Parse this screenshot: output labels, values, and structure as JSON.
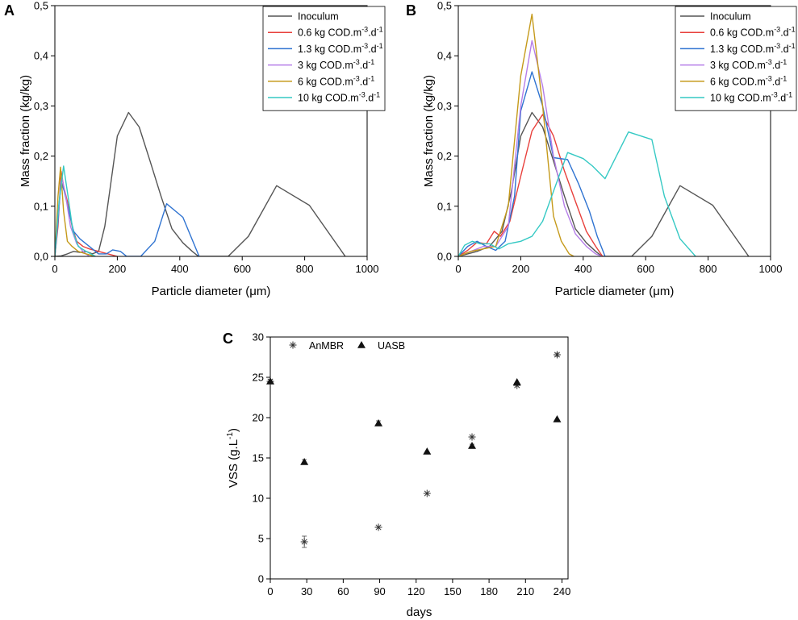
{
  "panel_labels": {
    "a": "A",
    "b": "B",
    "c": "C"
  },
  "chart_data": [
    {
      "panel": "A",
      "type": "line",
      "xlabel": "Particle diameter (μm)",
      "ylabel": "Mass fraction (kg/kg)",
      "xlim": [
        0,
        1000
      ],
      "ylim": [
        0,
        0.5
      ],
      "xticks": [
        0,
        200,
        400,
        600,
        800,
        1000
      ],
      "yticks": [
        0,
        0.1,
        0.2,
        0.3,
        0.4,
        0.5
      ],
      "xtick_labels": [
        "0",
        "200",
        "400",
        "600",
        "800",
        "1000"
      ],
      "ytick_labels": [
        "0,0",
        "0,1",
        "0,2",
        "0,3",
        "0,4",
        "0,5"
      ],
      "legend_position": "top-right",
      "series": [
        {
          "name": "Inoculum",
          "label": {
            "base": "Inoculum"
          },
          "color": "#555555",
          "points": [
            [
              0,
              0
            ],
            [
              20,
              0.001
            ],
            [
              40,
              0.005
            ],
            [
              60,
              0.01
            ],
            [
              80,
              0.008
            ],
            [
              100,
              0.01
            ],
            [
              120,
              0.005
            ],
            [
              140,
              0.01
            ],
            [
              160,
              0.06
            ],
            [
              180,
              0.15
            ],
            [
              200,
              0.24
            ],
            [
              236,
              0.287
            ],
            [
              270,
              0.258
            ],
            [
              305,
              0.19
            ],
            [
              340,
              0.12
            ],
            [
              375,
              0.055
            ],
            [
              410,
              0.027
            ],
            [
              440,
              0.01
            ],
            [
              460,
              0.0
            ],
            [
              555,
              0.0
            ],
            [
              620,
              0.04
            ],
            [
              710,
              0.141
            ],
            [
              815,
              0.102
            ],
            [
              930,
              0.0
            ]
          ]
        },
        {
          "name": "0.6 kg COD.m-3.d-1",
          "label": {
            "base": "0.6 kg COD.m",
            "sup": "-3",
            "mid": ".d",
            "sup2": "-1"
          },
          "color": "#e8403c",
          "points": [
            [
              0,
              0
            ],
            [
              10,
              0.06
            ],
            [
              20,
              0.17
            ],
            [
              28,
              0.14
            ],
            [
              40,
              0.11
            ],
            [
              55,
              0.06
            ],
            [
              70,
              0.03
            ],
            [
              90,
              0.02
            ],
            [
              110,
              0.015
            ],
            [
              140,
              0.01
            ],
            [
              170,
              0.005
            ],
            [
              200,
              0.0
            ]
          ]
        },
        {
          "name": "1.3 kg COD.m-3.d-1",
          "label": {
            "base": "1.3 kg COD.m",
            "sup": "-3",
            "mid": ".d",
            "sup2": "-1"
          },
          "color": "#2f73d1",
          "points": [
            [
              0,
              0
            ],
            [
              10,
              0.07
            ],
            [
              20,
              0.15
            ],
            [
              30,
              0.13
            ],
            [
              45,
              0.09
            ],
            [
              60,
              0.05
            ],
            [
              80,
              0.035
            ],
            [
              110,
              0.02
            ],
            [
              140,
              0.005
            ],
            [
              165,
              0.005
            ],
            [
              185,
              0.013
            ],
            [
              210,
              0.01
            ],
            [
              230,
              0.0
            ],
            [
              275,
              0.0
            ],
            [
              320,
              0.03
            ],
            [
              358,
              0.105
            ],
            [
              410,
              0.078
            ],
            [
              462,
              0.0
            ]
          ]
        },
        {
          "name": "3 kg COD.m-3.d-1",
          "label": {
            "base": "3 kg COD.m",
            "sup": "-3",
            "mid": ".d",
            "sup2": "-1"
          },
          "color": "#b57ee8",
          "points": [
            [
              0,
              0
            ],
            [
              10,
              0.08
            ],
            [
              22,
              0.16
            ],
            [
              35,
              0.12
            ],
            [
              50,
              0.06
            ],
            [
              70,
              0.025
            ],
            [
              90,
              0.01
            ],
            [
              110,
              0.0
            ]
          ]
        },
        {
          "name": "6 kg COD.m-3.d-1",
          "label": {
            "base": "6 kg COD.m",
            "sup": "-3",
            "mid": ".d",
            "sup2": "-1"
          },
          "color": "#c59a1b",
          "points": [
            [
              0,
              0
            ],
            [
              10,
              0.12
            ],
            [
              18,
              0.178
            ],
            [
              28,
              0.09
            ],
            [
              40,
              0.03
            ],
            [
              55,
              0.02
            ],
            [
              75,
              0.01
            ],
            [
              100,
              0.005
            ],
            [
              130,
              0.0
            ]
          ]
        },
        {
          "name": "10 kg COD.m-3.d-1",
          "label": {
            "base": "10 kg COD.m",
            "sup": "-3",
            "mid": ".d",
            "sup2": "-1"
          },
          "color": "#35c9c4",
          "points": [
            [
              0,
              0
            ],
            [
              12,
              0.1
            ],
            [
              28,
              0.18
            ],
            [
              42,
              0.12
            ],
            [
              58,
              0.05
            ],
            [
              75,
              0.02
            ],
            [
              100,
              0.01
            ],
            [
              130,
              0.0
            ]
          ]
        }
      ]
    },
    {
      "panel": "B",
      "type": "line",
      "xlabel": "Particle diameter (μm)",
      "ylabel": "Mass fraction (kg/kg)",
      "xlim": [
        0,
        1000
      ],
      "ylim": [
        0,
        0.5
      ],
      "xticks": [
        0,
        200,
        400,
        600,
        800,
        1000
      ],
      "yticks": [
        0,
        0.1,
        0.2,
        0.3,
        0.4,
        0.5
      ],
      "xtick_labels": [
        "0",
        "200",
        "400",
        "600",
        "800",
        "1000"
      ],
      "ytick_labels": [
        "0,0",
        "0,1",
        "0,2",
        "0,3",
        "0,4",
        "0,5"
      ],
      "legend_position": "top-right",
      "series": [
        {
          "name": "Inoculum",
          "label": {
            "base": "Inoculum"
          },
          "color": "#555555",
          "points": [
            [
              0,
              0
            ],
            [
              30,
              0.005
            ],
            [
              60,
              0.01
            ],
            [
              100,
              0.02
            ],
            [
              140,
              0.05
            ],
            [
              170,
              0.13
            ],
            [
              200,
              0.24
            ],
            [
              236,
              0.287
            ],
            [
              270,
              0.258
            ],
            [
              305,
              0.19
            ],
            [
              340,
              0.12
            ],
            [
              375,
              0.055
            ],
            [
              410,
              0.027
            ],
            [
              440,
              0.01
            ],
            [
              460,
              0.0
            ],
            [
              555,
              0.0
            ],
            [
              620,
              0.04
            ],
            [
              710,
              0.141
            ],
            [
              815,
              0.102
            ],
            [
              930,
              0.0
            ]
          ]
        },
        {
          "name": "0.6 kg COD.m-3.d-1",
          "label": {
            "base": "0.6 kg COD.m",
            "sup": "-3",
            "mid": ".d",
            "sup2": "-1"
          },
          "color": "#e8403c",
          "points": [
            [
              0,
              0
            ],
            [
              30,
              0.012
            ],
            [
              60,
              0.028
            ],
            [
              90,
              0.025
            ],
            [
              115,
              0.05
            ],
            [
              135,
              0.04
            ],
            [
              165,
              0.07
            ],
            [
              200,
              0.16
            ],
            [
              236,
              0.25
            ],
            [
              270,
              0.283
            ],
            [
              305,
              0.24
            ],
            [
              340,
              0.17
            ],
            [
              375,
              0.11
            ],
            [
              410,
              0.05
            ],
            [
              440,
              0.02
            ],
            [
              462,
              0.0
            ]
          ]
        },
        {
          "name": "1.3 kg COD.m-3.d-1",
          "label": {
            "base": "1.3 kg COD.m",
            "sup": "-3",
            "mid": ".d",
            "sup2": "-1"
          },
          "color": "#2f73d1",
          "points": [
            [
              0,
              0
            ],
            [
              30,
              0.02
            ],
            [
              60,
              0.03
            ],
            [
              90,
              0.02
            ],
            [
              120,
              0.012
            ],
            [
              150,
              0.03
            ],
            [
              180,
              0.12
            ],
            [
              200,
              0.29
            ],
            [
              236,
              0.368
            ],
            [
              270,
              0.3
            ],
            [
              305,
              0.197
            ],
            [
              350,
              0.193
            ],
            [
              385,
              0.145
            ],
            [
              420,
              0.09
            ],
            [
              445,
              0.04
            ],
            [
              470,
              0.0
            ]
          ]
        },
        {
          "name": "3 kg COD.m-3.d-1",
          "label": {
            "base": "3 kg COD.m",
            "sup": "-3",
            "mid": ".d",
            "sup2": "-1"
          },
          "color": "#b57ee8",
          "points": [
            [
              0,
              0
            ],
            [
              40,
              0.01
            ],
            [
              80,
              0.02
            ],
            [
              120,
              0.02
            ],
            [
              160,
              0.06
            ],
            [
              200,
              0.3
            ],
            [
              236,
              0.43
            ],
            [
              270,
              0.34
            ],
            [
              305,
              0.2
            ],
            [
              340,
              0.1
            ],
            [
              375,
              0.045
            ],
            [
              410,
              0.02
            ],
            [
              440,
              0.005
            ],
            [
              460,
              0.0
            ]
          ]
        },
        {
          "name": "6 kg COD.m-3.d-1",
          "label": {
            "base": "6 kg COD.m",
            "sup": "-3",
            "mid": ".d",
            "sup2": "-1"
          },
          "color": "#c59a1b",
          "points": [
            [
              0,
              0
            ],
            [
              40,
              0.01
            ],
            [
              80,
              0.015
            ],
            [
              120,
              0.02
            ],
            [
              160,
              0.1
            ],
            [
              200,
              0.36
            ],
            [
              236,
              0.483
            ],
            [
              270,
              0.3
            ],
            [
              305,
              0.08
            ],
            [
              330,
              0.03
            ],
            [
              355,
              0.005
            ],
            [
              370,
              0.0
            ]
          ]
        },
        {
          "name": "10 kg COD.m-3.d-1",
          "label": {
            "base": "10 kg COD.m",
            "sup": "-3",
            "mid": ".d",
            "sup2": "-1"
          },
          "color": "#35c9c4",
          "points": [
            [
              0,
              0
            ],
            [
              20,
              0.022
            ],
            [
              45,
              0.03
            ],
            [
              70,
              0.025
            ],
            [
              100,
              0.025
            ],
            [
              130,
              0.015
            ],
            [
              160,
              0.025
            ],
            [
              200,
              0.03
            ],
            [
              236,
              0.04
            ],
            [
              270,
              0.07
            ],
            [
              305,
              0.13
            ],
            [
              350,
              0.207
            ],
            [
              400,
              0.195
            ],
            [
              430,
              0.18
            ],
            [
              470,
              0.155
            ],
            [
              545,
              0.248
            ],
            [
              620,
              0.233
            ],
            [
              660,
              0.12
            ],
            [
              710,
              0.035
            ],
            [
              760,
              0.0
            ]
          ]
        }
      ]
    },
    {
      "panel": "C",
      "type": "scatter",
      "xlabel": "days",
      "ylabel": "VSS (g.L-1)",
      "ylabel_parts": {
        "base": "VSS (g.L",
        "sup": "-1",
        "end": ")"
      },
      "xlim": [
        0,
        245
      ],
      "ylim": [
        0,
        30
      ],
      "xticks": [
        0,
        30,
        60,
        90,
        120,
        150,
        180,
        210,
        240
      ],
      "yticks": [
        0,
        5,
        10,
        15,
        20,
        25,
        30
      ],
      "xtick_labels": [
        "0",
        "30",
        "60",
        "90",
        "120",
        "150",
        "180",
        "210",
        "240"
      ],
      "ytick_labels": [
        "0",
        "5",
        "10",
        "15",
        "20",
        "25",
        "30"
      ],
      "legend_position": "top-left",
      "series": [
        {
          "name": "AnMBR",
          "marker": "asterisk",
          "color": "#333333",
          "x": [
            0,
            28,
            89,
            129,
            166,
            203,
            236
          ],
          "y": [
            24.5,
            4.6,
            6.4,
            10.6,
            17.6,
            24.0,
            27.8
          ],
          "err": [
            0,
            0.7,
            0,
            0,
            0,
            0,
            0.2
          ]
        },
        {
          "name": "UASB",
          "marker": "triangle",
          "color": "#111111",
          "x": [
            0,
            28,
            89,
            129,
            166,
            203,
            236
          ],
          "y": [
            24.5,
            14.5,
            19.3,
            15.8,
            16.5,
            24.4,
            19.8
          ],
          "err": [
            0,
            0.3,
            0.3,
            0,
            0.2,
            0,
            0
          ]
        }
      ]
    }
  ]
}
